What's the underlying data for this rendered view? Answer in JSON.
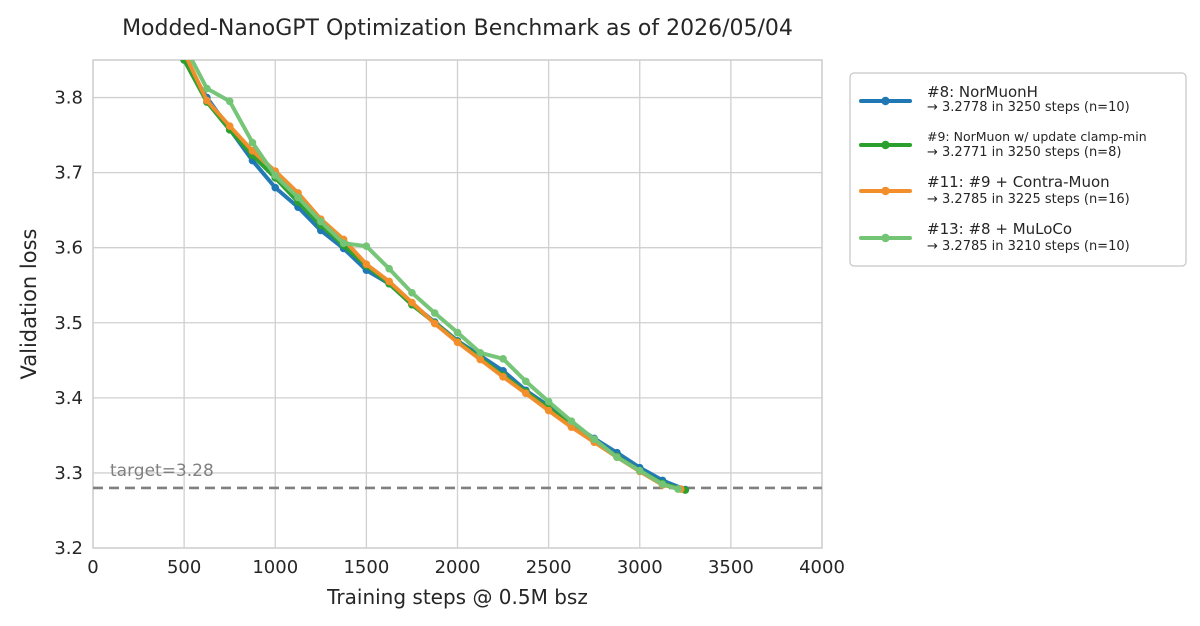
{
  "chart_data": {
    "type": "line",
    "title": "Modded-NanoGPT Optimization Benchmark as of 2026/05/04",
    "xlabel": "Training steps @ 0.5M bsz",
    "ylabel": "Validation loss",
    "xlim": [
      0,
      4000
    ],
    "ylim": [
      3.2,
      3.85
    ],
    "xticks": [
      0,
      500,
      1000,
      1500,
      2000,
      2500,
      3000,
      3500,
      4000
    ],
    "yticks": [
      3.2,
      3.3,
      3.4,
      3.5,
      3.6,
      3.7,
      3.8
    ],
    "xtick_labels": [
      "0",
      "500",
      "1000",
      "1500",
      "2000",
      "2500",
      "3000",
      "3500",
      "4000"
    ],
    "ytick_labels": [
      "3.2",
      "3.3",
      "3.4",
      "3.5",
      "3.6",
      "3.7",
      "3.8"
    ],
    "grid": true,
    "legend_position": "outside-right-top",
    "target": {
      "y": 3.28,
      "label": "target=3.28",
      "style": "dashed",
      "color": "#808080"
    },
    "series": [
      {
        "name": "#8: NorMuonH",
        "detail": "→ 3.2778 in 3250 steps (n=10)",
        "color": "#1f77b4",
        "points": [
          [
            500,
            3.85
          ],
          [
            625,
            3.8
          ],
          [
            750,
            3.758
          ],
          [
            875,
            3.716
          ],
          [
            1000,
            3.68
          ],
          [
            1125,
            3.654
          ],
          [
            1250,
            3.623
          ],
          [
            1375,
            3.599
          ],
          [
            1500,
            3.57
          ],
          [
            1625,
            3.552
          ],
          [
            1750,
            3.525
          ],
          [
            1875,
            3.501
          ],
          [
            2000,
            3.476
          ],
          [
            2125,
            3.456
          ],
          [
            2250,
            3.436
          ],
          [
            2375,
            3.41
          ],
          [
            2500,
            3.389
          ],
          [
            2625,
            3.366
          ],
          [
            2750,
            3.346
          ],
          [
            2875,
            3.327
          ],
          [
            3000,
            3.307
          ],
          [
            3125,
            3.29
          ],
          [
            3250,
            3.2778
          ]
        ]
      },
      {
        "name": "#9: NorMuon w/ update clamp-min",
        "detail": "→ 3.2771 in 3250 steps (n=8)",
        "color": "#2ca02c",
        "points": [
          [
            500,
            3.85
          ],
          [
            625,
            3.794
          ],
          [
            750,
            3.757
          ],
          [
            875,
            3.723
          ],
          [
            1000,
            3.693
          ],
          [
            1125,
            3.661
          ],
          [
            1250,
            3.63
          ],
          [
            1375,
            3.603
          ],
          [
            1500,
            3.576
          ],
          [
            1625,
            3.552
          ],
          [
            1750,
            3.524
          ],
          [
            1875,
            3.5
          ],
          [
            2000,
            3.475
          ],
          [
            2125,
            3.453
          ],
          [
            2250,
            3.43
          ],
          [
            2375,
            3.408
          ],
          [
            2500,
            3.386
          ],
          [
            2625,
            3.364
          ],
          [
            2750,
            3.343
          ],
          [
            2875,
            3.322
          ],
          [
            3000,
            3.303
          ],
          [
            3125,
            3.286
          ],
          [
            3250,
            3.2771
          ]
        ]
      },
      {
        "name": "#11: #9 + Contra-Muon",
        "detail": "→ 3.2785 in 3225 steps (n=16)",
        "color": "#f28e2b",
        "points": [
          [
            500,
            3.86
          ],
          [
            625,
            3.796
          ],
          [
            750,
            3.762
          ],
          [
            875,
            3.729
          ],
          [
            1000,
            3.702
          ],
          [
            1125,
            3.673
          ],
          [
            1250,
            3.638
          ],
          [
            1375,
            3.611
          ],
          [
            1500,
            3.578
          ],
          [
            1625,
            3.555
          ],
          [
            1750,
            3.527
          ],
          [
            1875,
            3.499
          ],
          [
            2000,
            3.474
          ],
          [
            2125,
            3.451
          ],
          [
            2250,
            3.428
          ],
          [
            2375,
            3.406
          ],
          [
            2500,
            3.383
          ],
          [
            2625,
            3.361
          ],
          [
            2750,
            3.341
          ],
          [
            2875,
            3.321
          ],
          [
            3000,
            3.302
          ],
          [
            3125,
            3.284
          ],
          [
            3225,
            3.2785
          ]
        ]
      },
      {
        "name": "#13: #8 + MuLoCo",
        "detail": "→ 3.2785 in 3210 steps (n=10)",
        "color": "#74c476",
        "points": [
          [
            500,
            3.87
          ],
          [
            625,
            3.812
          ],
          [
            750,
            3.795
          ],
          [
            875,
            3.74
          ],
          [
            1000,
            3.696
          ],
          [
            1125,
            3.667
          ],
          [
            1250,
            3.635
          ],
          [
            1375,
            3.606
          ],
          [
            1500,
            3.602
          ],
          [
            1625,
            3.572
          ],
          [
            1750,
            3.54
          ],
          [
            1875,
            3.513
          ],
          [
            2000,
            3.487
          ],
          [
            2125,
            3.46
          ],
          [
            2250,
            3.452
          ],
          [
            2375,
            3.422
          ],
          [
            2500,
            3.395
          ],
          [
            2625,
            3.369
          ],
          [
            2750,
            3.345
          ],
          [
            2875,
            3.321
          ],
          [
            3000,
            3.303
          ],
          [
            3125,
            3.285
          ],
          [
            3210,
            3.2785
          ]
        ]
      }
    ]
  }
}
